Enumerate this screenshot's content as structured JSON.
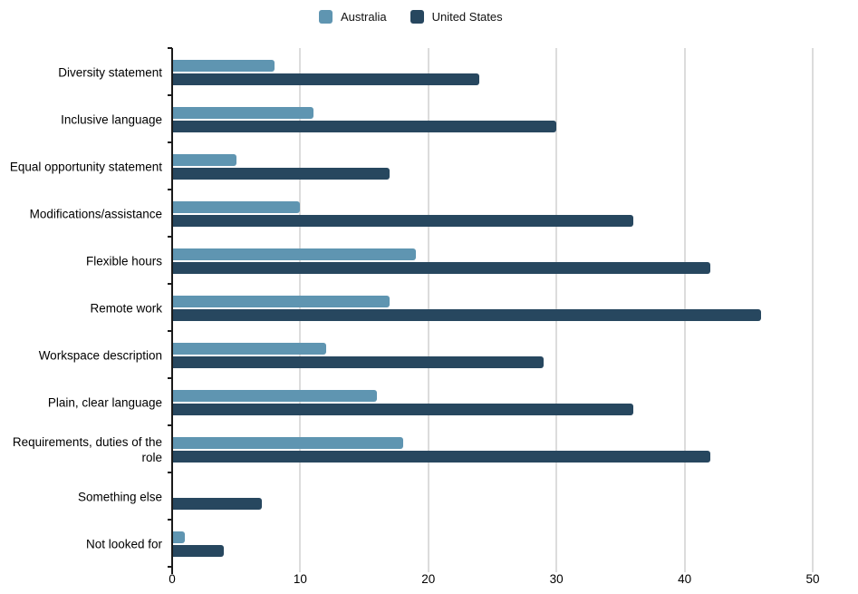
{
  "chart_data": {
    "type": "bar",
    "orientation": "horizontal",
    "title": "",
    "categories": [
      "Diversity statement",
      "Inclusive language",
      "Equal opportunity statement",
      "Modifications/assistance",
      "Flexible hours",
      "Remote work",
      "Workspace description",
      "Plain, clear language",
      "Requirements, duties of the role",
      "Something else",
      "Not looked for"
    ],
    "series": [
      {
        "name": "Australia",
        "color": "#5f95b1",
        "values": [
          8,
          11,
          5,
          10,
          19,
          17,
          12,
          16,
          18,
          0,
          1
        ]
      },
      {
        "name": "United States",
        "color": "#27475f",
        "values": [
          24,
          30,
          17,
          36,
          42,
          46,
          29,
          36,
          42,
          7,
          4
        ]
      }
    ],
    "xlim": [
      0,
      50
    ],
    "xticks": [
      0,
      10,
      20,
      30,
      40,
      50
    ],
    "grid": "vertical",
    "legend_position": "top",
    "colors": {
      "australia": "#5f95b1",
      "united_states": "#27475f",
      "gridline": "#dcdcdc",
      "axis": "#1a1a1a"
    }
  }
}
